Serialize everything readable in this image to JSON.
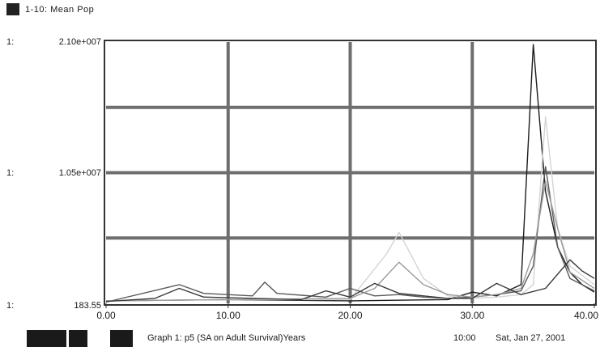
{
  "legend": {
    "label": "1-10: Mean Pop"
  },
  "axis": {
    "prefix_top": "1:",
    "prefix_mid": "1:",
    "prefix_bottom": "1:",
    "ytick_top": "2.10e+007",
    "ytick_mid": "1.05e+007",
    "ytick_bottom": "183.55"
  },
  "footer": {
    "title": "Graph 1: p5 (SA on Adult Survival)Years",
    "time": "10:00",
    "date": "Sat, Jan 27, 2001"
  },
  "chart_data": {
    "type": "line",
    "title": "",
    "xlabel": "Years",
    "ylabel": "Mean Pop",
    "xlim": [
      0,
      40
    ],
    "ylim": [
      183.55,
      21000000
    ],
    "x_ticks": [
      "0.00",
      "10.00",
      "20.00",
      "30.00",
      "40.00"
    ],
    "y_ticks": [
      "183.55",
      "1.05e+007",
      "2.10e+007"
    ],
    "grid": true,
    "series": [
      {
        "color": "#1c1c1c",
        "x": [
          0,
          10,
          20,
          28,
          30,
          32,
          34,
          35,
          36,
          37,
          38,
          39,
          40
        ],
        "y": [
          200000,
          300000,
          200000,
          300000,
          900000,
          600000,
          1500000,
          20800000,
          9000000,
          4500000,
          2500000,
          1500000,
          900000
        ]
      },
      {
        "color": "#d4d4d4",
        "x": [
          0,
          10,
          20,
          23,
          24,
          26,
          28,
          30,
          32,
          34,
          35,
          36,
          37,
          38,
          40
        ],
        "y": [
          200000,
          300000,
          300000,
          4000000,
          5700000,
          2000000,
          600000,
          400000,
          500000,
          700000,
          1500000,
          15000000,
          6000000,
          3000000,
          1500000
        ]
      },
      {
        "color": "#5a5a5a",
        "x": [
          0,
          6,
          8,
          12,
          13,
          14,
          18,
          20,
          22,
          24,
          26,
          28,
          30,
          32,
          34,
          35,
          36,
          37,
          38,
          40
        ],
        "y": [
          100000,
          1500000,
          800000,
          600000,
          1700000,
          800000,
          500000,
          1200000,
          600000,
          700000,
          500000,
          400000,
          500000,
          700000,
          1000000,
          3000000,
          11000000,
          4500000,
          2000000,
          1000000
        ]
      },
      {
        "color": "#9a9a9a",
        "x": [
          0,
          10,
          20,
          22,
          24,
          26,
          28,
          30,
          32,
          34,
          35,
          36,
          37,
          38,
          40
        ],
        "y": [
          200000,
          300000,
          400000,
          1200000,
          3300000,
          1500000,
          700000,
          500000,
          700000,
          1200000,
          4000000,
          9800000,
          6000000,
          2500000,
          1200000
        ]
      },
      {
        "color": "#3a3a3a",
        "x": [
          0,
          4,
          6,
          8,
          16,
          18,
          20,
          22,
          24,
          26,
          28,
          30,
          32,
          34,
          36,
          38,
          39,
          40
        ],
        "y": [
          150000,
          400000,
          1200000,
          500000,
          300000,
          1000000,
          500000,
          1600000,
          800000,
          600000,
          400000,
          400000,
          1600000,
          700000,
          1200000,
          3500000,
          2600000,
          2000000
        ]
      }
    ]
  }
}
